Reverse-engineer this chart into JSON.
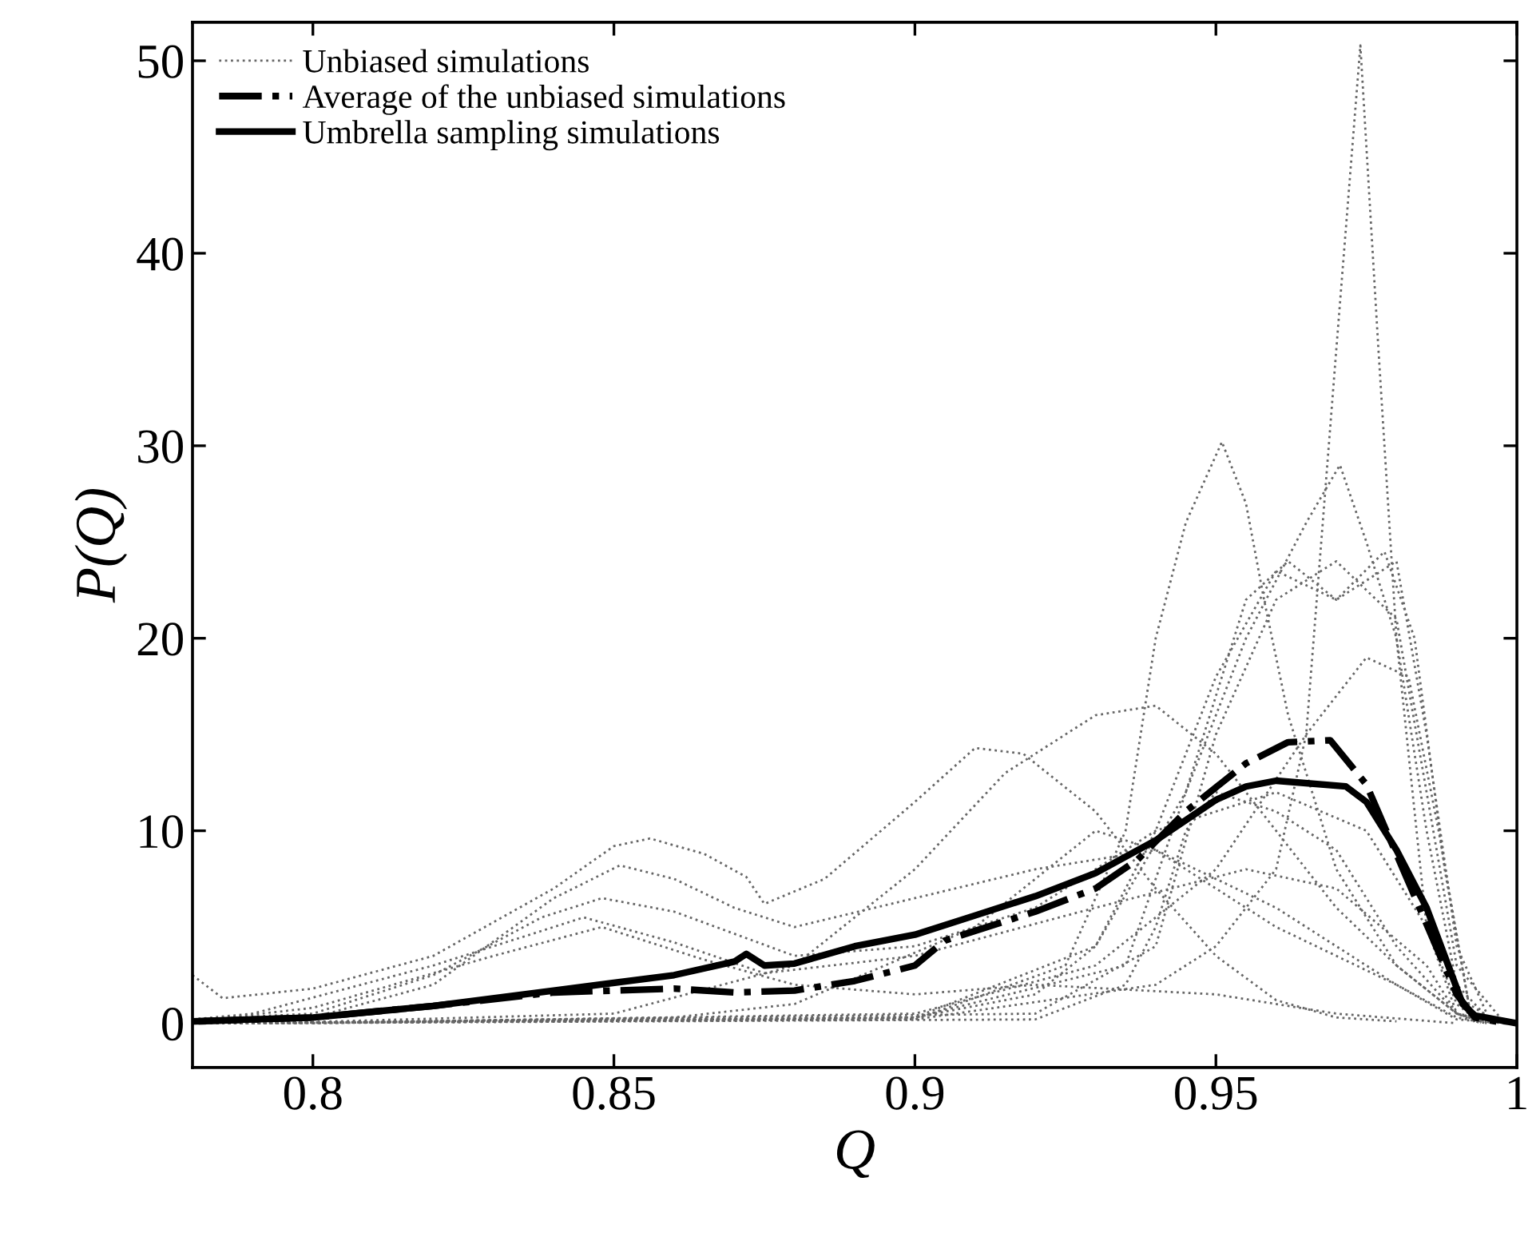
{
  "chart_data": {
    "type": "line",
    "xlabel": "Q",
    "ylabel": "P(Q)",
    "xlim": [
      0.78,
      1.0
    ],
    "xticks": [
      0.8,
      0.85,
      0.9,
      0.95,
      {
        "value": 1.0,
        "label": "1"
      }
    ],
    "ylim": [
      -2.3,
      52
    ],
    "yticks": [
      0,
      10,
      20,
      30,
      40,
      50
    ],
    "grid": false,
    "legend": "top left",
    "marker": "none",
    "series": [
      {
        "name": "Unbiased simulations",
        "color": "#666666",
        "line_style": "dotted",
        "x": [
          0.78,
          0.785,
          0.8,
          0.82,
          0.84,
          0.85,
          0.856,
          0.865,
          0.872,
          0.875,
          0.885,
          0.9,
          0.91,
          0.918,
          0.93,
          0.94,
          0.95,
          0.96,
          0.97,
          0.98
        ],
        "values": [
          2.5,
          1.3,
          1.8,
          3.5,
          7,
          9.2,
          9.6,
          8.8,
          7.6,
          6.2,
          7.5,
          11.5,
          14.3,
          14,
          11,
          7,
          3.5,
          1.2,
          0.3,
          0.1
        ]
      },
      {
        "color": "#666666",
        "line_style": "dotted",
        "x": [
          0.78,
          0.9,
          0.94,
          0.95,
          0.96,
          0.965,
          0.97,
          0.974,
          0.977,
          0.98,
          0.985,
          0.99,
          0.995
        ],
        "values": [
          0,
          0.2,
          2,
          4,
          8,
          15,
          35,
          50.8,
          35,
          20,
          5,
          0.5,
          0
        ]
      },
      {
        "color": "#666666",
        "line_style": "dotted",
        "x": [
          0.782,
          0.9,
          0.925,
          0.935,
          0.94,
          0.945,
          0.951,
          0.955,
          0.958,
          0.962,
          0.97,
          0.98,
          0.99,
          0.994
        ],
        "values": [
          0,
          0.2,
          3,
          10,
          20,
          26,
          30.2,
          27,
          22,
          16,
          8,
          3,
          0.5,
          0
        ]
      },
      {
        "color": "#666666",
        "line_style": "dotted",
        "x": [
          0.784,
          0.9,
          0.93,
          0.945,
          0.955,
          0.965,
          0.9706,
          0.975,
          0.98,
          0.985,
          0.99,
          0.996
        ],
        "values": [
          0,
          0.3,
          4,
          12,
          20,
          26,
          29,
          25,
          20,
          10,
          2,
          0
        ]
      },
      {
        "color": "#666666",
        "line_style": "dotted",
        "x": [
          0.786,
          0.9,
          0.935,
          0.945,
          0.955,
          0.962,
          0.97,
          0.978,
          0.983,
          0.988,
          0.992,
          0.997
        ],
        "values": [
          0,
          0.3,
          3,
          12,
          22,
          24,
          22,
          24.5,
          20,
          8,
          1,
          0
        ]
      },
      {
        "color": "#666666",
        "line_style": "dotted",
        "x": [
          0.788,
          0.92,
          0.94,
          0.95,
          0.96,
          0.97,
          0.98,
          0.985,
          0.99,
          0.998
        ],
        "values": [
          0,
          0.5,
          4,
          15,
          22,
          24,
          21,
          12,
          3,
          0
        ]
      },
      {
        "color": "#666666",
        "line_style": "dotted",
        "x": [
          0.792,
          0.85,
          0.88,
          0.9,
          0.915,
          0.93,
          0.94,
          0.95,
          0.96,
          0.97,
          0.98,
          0.99,
          0.999
        ],
        "values": [
          0,
          0.5,
          3,
          8,
          13,
          16,
          16.5,
          14,
          10,
          6,
          3,
          0.5,
          0
        ]
      },
      {
        "color": "#666666",
        "line_style": "dotted",
        "x": [
          0.78,
          0.8,
          0.82,
          0.84,
          0.851,
          0.86,
          0.87,
          0.88,
          0.9,
          0.92,
          0.94,
          0.96,
          0.98,
          0.99,
          0.995
        ],
        "values": [
          0.2,
          0.3,
          2,
          6.5,
          8.2,
          7.5,
          6,
          5,
          6.5,
          8,
          9,
          6,
          2,
          0.3,
          0
        ]
      },
      {
        "color": "#666666",
        "line_style": "dotted",
        "x": [
          0.78,
          0.8,
          0.82,
          0.838,
          0.848,
          0.86,
          0.88,
          0.9,
          0.92,
          0.94,
          0.96,
          0.975,
          0.985,
          0.99,
          0.994
        ],
        "values": [
          0.2,
          0.5,
          2.5,
          5.5,
          6.5,
          5.8,
          3.5,
          4,
          6,
          10,
          12,
          10,
          5,
          1,
          0
        ]
      },
      {
        "color": "#666666",
        "line_style": "dotted",
        "x": [
          0.78,
          0.79,
          0.82,
          0.845,
          0.86,
          0.875,
          0.9,
          0.93,
          0.955,
          0.97,
          0.985,
          0.99,
          0.996
        ],
        "values": [
          0.2,
          0.5,
          3,
          5.5,
          4.2,
          2.6,
          3.5,
          6,
          8,
          7,
          3,
          0.5,
          0
        ]
      },
      {
        "color": "#666666",
        "line_style": "dotted",
        "x": [
          0.78,
          0.8,
          0.83,
          0.848,
          0.865,
          0.88,
          0.9,
          0.92,
          0.95,
          0.97,
          0.99
        ],
        "values": [
          0.1,
          0.8,
          3.5,
          5,
          3.3,
          2,
          1.5,
          2,
          1.5,
          0.5,
          0
        ]
      },
      {
        "color": "#666666",
        "line_style": "dotted",
        "x": [
          0.794,
          0.9,
          0.92,
          0.93,
          0.94,
          0.95,
          0.96,
          0.97,
          0.98,
          0.985,
          0.99,
          0.995
        ],
        "values": [
          0,
          0.3,
          1.5,
          4,
          10,
          18,
          23.5,
          22,
          24,
          15,
          4,
          0.5
        ]
      },
      {
        "color": "#666666",
        "line_style": "dotted",
        "x": [
          0.796,
          0.9,
          0.93,
          0.95,
          0.965,
          0.975,
          0.982,
          0.987,
          0.992,
          0.993
        ],
        "values": [
          0,
          0.5,
          3,
          8,
          15,
          19,
          18,
          10,
          1,
          0
        ]
      },
      {
        "color": "#666666",
        "line_style": "dotted",
        "x": [
          0.79,
          0.92,
          0.935,
          0.94,
          0.945,
          0.95,
          0.96,
          0.97,
          0.98,
          0.99,
          0.997
        ],
        "values": [
          0,
          0.2,
          2,
          5,
          10,
          12,
          11,
          9,
          4,
          0.5,
          0
        ]
      },
      {
        "color": "#666666",
        "line_style": "dotted",
        "x": [
          0.8,
          0.86,
          0.88,
          0.91,
          0.93,
          0.94,
          0.96,
          0.98,
          0.99,
          0.998
        ],
        "values": [
          0,
          0.3,
          1,
          5,
          10,
          9,
          5,
          2,
          0.2,
          0
        ]
      },
      {
        "name": "Average of the unbiased simulations",
        "color": "#000000",
        "line_style": "dashdot",
        "x": [
          0.781,
          0.8,
          0.82,
          0.84,
          0.86,
          0.87,
          0.88,
          0.89,
          0.9,
          0.905,
          0.92,
          0.93,
          0.937,
          0.945,
          0.955,
          0.962,
          0.969,
          0.975,
          0.983,
          0.99,
          0.993,
          0.998
        ],
        "values": [
          0.1,
          0.3,
          0.9,
          1.6,
          1.8,
          1.6,
          1.7,
          2.2,
          3.0,
          4.3,
          5.8,
          7.0,
          8.5,
          11.0,
          13.5,
          14.6,
          14.7,
          12.4,
          6.6,
          1.5,
          0.3,
          0.0
        ]
      },
      {
        "name": "Umbrella sampling simulations",
        "color": "#000000",
        "line_style": "solid",
        "x": [
          0.78,
          0.8,
          0.82,
          0.84,
          0.86,
          0.87,
          0.872,
          0.875,
          0.88,
          0.89,
          0.9,
          0.91,
          0.92,
          0.93,
          0.94,
          0.95,
          0.955,
          0.96,
          0.9716,
          0.975,
          0.98,
          0.985,
          0.991,
          0.993,
          1.0
        ],
        "values": [
          0.1,
          0.3,
          0.9,
          1.7,
          2.5,
          3.2,
          3.6,
          3.0,
          3.1,
          4.0,
          4.6,
          5.6,
          6.6,
          7.8,
          9.5,
          11.6,
          12.3,
          12.6,
          12.3,
          11.5,
          9.0,
          6.0,
          1.0,
          0.4,
          0.0
        ]
      }
    ]
  }
}
